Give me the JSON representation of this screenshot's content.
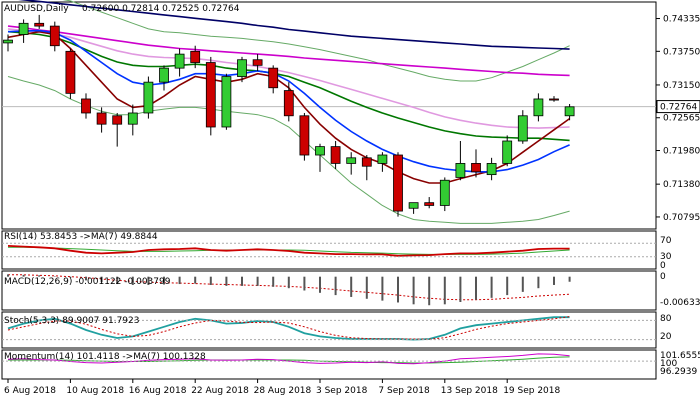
{
  "header": {
    "symbol": "AUDUSD,Daily",
    "ohlc": "0.72600 0.72814 0.72525 0.72764"
  },
  "indicators": {
    "rsi_label": "RSI(14) 53.8453  ->MA(7) 49.8844",
    "rsi_ticks": [
      "70",
      "30",
      "0"
    ],
    "macd_label": "MACD(12,26,9) -0.001122 -0.003799",
    "macd_ticks": [
      "0",
      "-0.006331"
    ],
    "stoch_label": "Stoch(5,3,3) 89.9007 91.7923",
    "stoch_ticks": [
      "80",
      "20"
    ],
    "mom_label": "Momentum(14) 101.4118  ->MA(7) 100.1328",
    "mom_ticks": [
      "101.6555",
      "100",
      "96.2939"
    ]
  },
  "colors": {
    "bull": "#33cc33",
    "bear": "#cc0000",
    "ma_navy": "#000066",
    "ma_magenta": "#cc00cc",
    "ma_green": "#007700",
    "ma_darkred": "#880000",
    "ma_blue": "#0033ff",
    "bb": "#66aa66",
    "bb_mid": "#e099e0",
    "rsi": "#cc0000",
    "rsi_ma": "#33aa33",
    "macd": "#555555",
    "signal": "#cc0000",
    "stoch_k": "#20a0a0",
    "stoch_d": "#cc0000",
    "mom": "#cc00cc",
    "mom_ma": "#33aa33"
  },
  "chart_data": {
    "type": "candlestick",
    "title": "AUDUSD,Daily",
    "price_ticks": [
      0.74335,
      0.7375,
      0.7315,
      0.72565,
      0.7198,
      0.7138,
      0.70795
    ],
    "ylim": [
      0.7058,
      0.7463
    ],
    "current_price": 0.72764,
    "x_labels": [
      "6 Aug 2018",
      "10 Aug 2018",
      "16 Aug 2018",
      "22 Aug 2018",
      "28 Aug 2018",
      "3 Sep 2018",
      "7 Sep 2018",
      "13 Sep 2018",
      "19 Sep 2018"
    ],
    "x_label_bars": [
      0,
      4,
      8,
      12,
      16,
      20,
      24,
      28,
      32
    ],
    "candles": [
      {
        "o": 0.739,
        "h": 0.7405,
        "l": 0.7375,
        "c": 0.7395
      },
      {
        "o": 0.7405,
        "h": 0.7432,
        "l": 0.739,
        "c": 0.7425
      },
      {
        "o": 0.7425,
        "h": 0.744,
        "l": 0.7415,
        "c": 0.742
      },
      {
        "o": 0.742,
        "h": 0.7428,
        "l": 0.7375,
        "c": 0.7385
      },
      {
        "o": 0.7375,
        "h": 0.738,
        "l": 0.729,
        "c": 0.73
      },
      {
        "o": 0.729,
        "h": 0.73,
        "l": 0.7255,
        "c": 0.7265
      },
      {
        "o": 0.7265,
        "h": 0.7275,
        "l": 0.723,
        "c": 0.7245
      },
      {
        "o": 0.726,
        "h": 0.7265,
        "l": 0.7205,
        "c": 0.7245
      },
      {
        "o": 0.7245,
        "h": 0.728,
        "l": 0.7225,
        "c": 0.7265
      },
      {
        "o": 0.7265,
        "h": 0.733,
        "l": 0.7255,
        "c": 0.732
      },
      {
        "o": 0.732,
        "h": 0.735,
        "l": 0.7305,
        "c": 0.7345
      },
      {
        "o": 0.7345,
        "h": 0.738,
        "l": 0.733,
        "c": 0.737
      },
      {
        "o": 0.7375,
        "h": 0.7385,
        "l": 0.7345,
        "c": 0.7355
      },
      {
        "o": 0.7355,
        "h": 0.7365,
        "l": 0.7225,
        "c": 0.724
      },
      {
        "o": 0.724,
        "h": 0.7335,
        "l": 0.7235,
        "c": 0.733
      },
      {
        "o": 0.733,
        "h": 0.7365,
        "l": 0.732,
        "c": 0.736
      },
      {
        "o": 0.736,
        "h": 0.737,
        "l": 0.734,
        "c": 0.735
      },
      {
        "o": 0.7345,
        "h": 0.735,
        "l": 0.73,
        "c": 0.731
      },
      {
        "o": 0.7305,
        "h": 0.732,
        "l": 0.725,
        "c": 0.726
      },
      {
        "o": 0.726,
        "h": 0.7265,
        "l": 0.718,
        "c": 0.719
      },
      {
        "o": 0.719,
        "h": 0.721,
        "l": 0.716,
        "c": 0.7205
      },
      {
        "o": 0.7205,
        "h": 0.7215,
        "l": 0.7165,
        "c": 0.7175
      },
      {
        "o": 0.7175,
        "h": 0.7195,
        "l": 0.7155,
        "c": 0.7185
      },
      {
        "o": 0.7185,
        "h": 0.719,
        "l": 0.7145,
        "c": 0.717
      },
      {
        "o": 0.7175,
        "h": 0.7195,
        "l": 0.716,
        "c": 0.719
      },
      {
        "o": 0.719,
        "h": 0.7195,
        "l": 0.708,
        "c": 0.709
      },
      {
        "o": 0.7095,
        "h": 0.7105,
        "l": 0.7085,
        "c": 0.7105
      },
      {
        "o": 0.7105,
        "h": 0.7115,
        "l": 0.7095,
        "c": 0.71
      },
      {
        "o": 0.71,
        "h": 0.715,
        "l": 0.709,
        "c": 0.7145
      },
      {
        "o": 0.715,
        "h": 0.7215,
        "l": 0.7145,
        "c": 0.7175
      },
      {
        "o": 0.7175,
        "h": 0.72,
        "l": 0.715,
        "c": 0.716
      },
      {
        "o": 0.7155,
        "h": 0.7185,
        "l": 0.7145,
        "c": 0.7175
      },
      {
        "o": 0.7175,
        "h": 0.7225,
        "l": 0.717,
        "c": 0.7215
      },
      {
        "o": 0.7215,
        "h": 0.727,
        "l": 0.721,
        "c": 0.726
      },
      {
        "o": 0.726,
        "h": 0.73,
        "l": 0.725,
        "c": 0.729
      },
      {
        "o": 0.729,
        "h": 0.7295,
        "l": 0.7285,
        "c": 0.7288
      },
      {
        "o": 0.726,
        "h": 0.7281,
        "l": 0.7252,
        "c": 0.7276
      }
    ],
    "moving_averages": [
      {
        "color": "ma_navy",
        "values": [
          0.747,
          0.7467,
          0.7464,
          0.7461,
          0.7458,
          0.7455,
          0.7452,
          0.7449,
          0.7446,
          0.7443,
          0.744,
          0.7437,
          0.7434,
          0.7431,
          0.7428,
          0.7425,
          0.7421,
          0.7418,
          0.7414,
          0.7411,
          0.7408,
          0.7405,
          0.7402,
          0.74,
          0.7398,
          0.7396,
          0.7394,
          0.7392,
          0.739,
          0.7388,
          0.7386,
          0.7384,
          0.7383,
          0.7382,
          0.7381,
          0.738,
          0.7379
        ]
      },
      {
        "color": "ma_magenta",
        "values": [
          0.742,
          0.7417,
          0.7413,
          0.741,
          0.7406,
          0.7402,
          0.7398,
          0.7394,
          0.739,
          0.7386,
          0.7383,
          0.738,
          0.7378,
          0.7376,
          0.7374,
          0.7372,
          0.737,
          0.7368,
          0.7366,
          0.7363,
          0.7361,
          0.7359,
          0.7357,
          0.7355,
          0.7353,
          0.7351,
          0.7349,
          0.7347,
          0.7345,
          0.7343,
          0.7341,
          0.7339,
          0.7337,
          0.7336,
          0.7334,
          0.7333,
          0.7332
        ]
      },
      {
        "color": "bb_mid",
        "values": [
          0.7415,
          0.7412,
          0.7409,
          0.7406,
          0.74,
          0.7392,
          0.7384,
          0.7376,
          0.737,
          0.7366,
          0.7364,
          0.7363,
          0.7362,
          0.7359,
          0.7355,
          0.7352,
          0.7348,
          0.7343,
          0.7337,
          0.733,
          0.7323,
          0.7315,
          0.7307,
          0.7299,
          0.7291,
          0.7283,
          0.7275,
          0.7266,
          0.7258,
          0.7252,
          0.7247,
          0.7243,
          0.724,
          0.7239,
          0.7238,
          0.7239,
          0.724
        ]
      },
      {
        "color": "ma_green",
        "values": [
          0.741,
          0.7408,
          0.7405,
          0.74,
          0.739,
          0.7378,
          0.7366,
          0.7356,
          0.735,
          0.7348,
          0.7348,
          0.735,
          0.7352,
          0.735,
          0.7345,
          0.7342,
          0.734,
          0.7336,
          0.733,
          0.732,
          0.731,
          0.7298,
          0.7286,
          0.7275,
          0.7265,
          0.7256,
          0.7248,
          0.724,
          0.7233,
          0.7228,
          0.7224,
          0.7222,
          0.7221,
          0.722,
          0.722,
          0.7218,
          0.7216
        ]
      },
      {
        "color": "ma_darkred",
        "values": [
          0.74,
          0.7405,
          0.741,
          0.7405,
          0.738,
          0.735,
          0.732,
          0.729,
          0.7275,
          0.7278,
          0.7295,
          0.7315,
          0.733,
          0.7325,
          0.732,
          0.7325,
          0.7335,
          0.733,
          0.731,
          0.7275,
          0.7245,
          0.722,
          0.72,
          0.7185,
          0.7175,
          0.716,
          0.7148,
          0.714,
          0.714,
          0.7148,
          0.7155,
          0.7162,
          0.7175,
          0.7195,
          0.7215,
          0.7235,
          0.7255
        ]
      },
      {
        "color": "ma_blue",
        "values": [
          0.741,
          0.7411,
          0.7412,
          0.7408,
          0.7395,
          0.7375,
          0.7355,
          0.7335,
          0.732,
          0.7315,
          0.7318,
          0.7325,
          0.7335,
          0.7335,
          0.7332,
          0.7335,
          0.734,
          0.7336,
          0.7322,
          0.73,
          0.7275,
          0.7252,
          0.7232,
          0.7215,
          0.72,
          0.7188,
          0.7178,
          0.717,
          0.7165,
          0.7162,
          0.716,
          0.716,
          0.7164,
          0.7172,
          0.7182,
          0.7196,
          0.7208
        ]
      }
    ],
    "bollinger_upper": [
      0.748,
      0.7478,
      0.7475,
      0.747,
      0.7465,
      0.7455,
      0.7445,
      0.7435,
      0.7425,
      0.7415,
      0.741,
      0.7408,
      0.7405,
      0.7402,
      0.74,
      0.7398,
      0.7395,
      0.7392,
      0.7388,
      0.7383,
      0.7378,
      0.7372,
      0.7366,
      0.736,
      0.7352,
      0.7345,
      0.7338,
      0.733,
      0.7325,
      0.7322,
      0.7322,
      0.7328,
      0.7338,
      0.7348,
      0.736,
      0.7372,
      0.7385
    ],
    "bollinger_lower": [
      0.733,
      0.7322,
      0.7315,
      0.7305,
      0.729,
      0.7278,
      0.7268,
      0.7262,
      0.7262,
      0.7268,
      0.7272,
      0.7275,
      0.7275,
      0.7272,
      0.7268,
      0.7265,
      0.7262,
      0.7255,
      0.724,
      0.7215,
      0.719,
      0.7165,
      0.714,
      0.712,
      0.71,
      0.7085,
      0.7075,
      0.7072,
      0.707,
      0.7068,
      0.7068,
      0.7068,
      0.707,
      0.7072,
      0.7075,
      0.7082,
      0.709
    ],
    "rsi": {
      "ylim": [
        0,
        100
      ],
      "levels": [
        70,
        30
      ],
      "rsi": [
        62,
        60,
        58,
        55,
        48,
        42,
        40,
        42,
        44,
        50,
        52,
        53,
        55,
        50,
        48,
        50,
        52,
        50,
        47,
        42,
        40,
        38,
        38,
        37,
        37,
        33,
        34,
        35,
        38,
        40,
        40,
        42,
        45,
        48,
        53,
        54,
        54
      ],
      "ma": [
        58,
        58,
        57,
        56,
        54,
        52,
        50,
        48,
        46,
        46,
        46,
        47,
        48,
        49,
        50,
        50,
        50,
        50,
        50,
        49,
        47,
        45,
        43,
        42,
        41,
        39,
        38,
        37,
        37,
        37,
        37,
        38,
        39,
        41,
        44,
        47,
        50
      ]
    },
    "macd": {
      "ylim": [
        -0.0068,
        0.0008
      ],
      "hist": [
        0.0005,
        0.0004,
        0.0003,
        0.0001,
        -0.0002,
        -0.0008,
        -0.0012,
        -0.0016,
        -0.0018,
        -0.0018,
        -0.0017,
        -0.0016,
        -0.0015,
        -0.0018,
        -0.002,
        -0.002,
        -0.002,
        -0.0022,
        -0.0025,
        -0.003,
        -0.0035,
        -0.004,
        -0.0044,
        -0.0048,
        -0.0052,
        -0.0056,
        -0.006,
        -0.0062,
        -0.006,
        -0.0055,
        -0.005,
        -0.0046,
        -0.004,
        -0.0033,
        -0.0025,
        -0.0018,
        -0.0011
      ],
      "signal": [
        0.0004,
        0.0004,
        0.0003,
        0.0002,
        0.0,
        -0.0002,
        -0.0005,
        -0.0008,
        -0.001,
        -0.0012,
        -0.0013,
        -0.0014,
        -0.0015,
        -0.0016,
        -0.0017,
        -0.0018,
        -0.0019,
        -0.002,
        -0.0021,
        -0.0023,
        -0.0025,
        -0.0028,
        -0.0031,
        -0.0034,
        -0.0037,
        -0.004,
        -0.0044,
        -0.0047,
        -0.0049,
        -0.005,
        -0.005,
        -0.0049,
        -0.0047,
        -0.0045,
        -0.0042,
        -0.004,
        -0.0038
      ]
    },
    "stoch": {
      "ylim": [
        0,
        100
      ],
      "levels": [
        80,
        20
      ],
      "k": [
        55,
        70,
        80,
        85,
        70,
        50,
        35,
        25,
        30,
        45,
        60,
        75,
        85,
        80,
        70,
        72,
        78,
        75,
        60,
        40,
        30,
        25,
        22,
        22,
        22,
        22,
        20,
        22,
        35,
        55,
        65,
        70,
        75,
        80,
        85,
        90,
        90
      ],
      "d": [
        50,
        60,
        70,
        78,
        78,
        68,
        52,
        38,
        30,
        33,
        45,
        60,
        72,
        80,
        78,
        74,
        73,
        75,
        72,
        60,
        45,
        33,
        26,
        23,
        22,
        22,
        22,
        21,
        26,
        38,
        52,
        62,
        70,
        75,
        80,
        85,
        92
      ]
    },
    "momentum": {
      "ylim": [
        95.8,
        102.4
      ],
      "level": 100,
      "mom": [
        100.5,
        100.6,
        100.4,
        100.3,
        99.9,
        99.6,
        99.5,
        99.7,
        99.9,
        100.2,
        100.4,
        100.5,
        100.6,
        100.3,
        100.2,
        100.3,
        100.5,
        100.4,
        100.0,
        99.6,
        99.4,
        99.5,
        99.7,
        99.6,
        99.8,
        99.4,
        99.3,
        99.6,
        100.0,
        100.6,
        100.8,
        101.0,
        101.2,
        101.5,
        101.9,
        101.8,
        101.4
      ],
      "ma": [
        100.3,
        100.3,
        100.3,
        100.3,
        100.2,
        100.1,
        100.0,
        99.9,
        99.9,
        99.9,
        100.0,
        100.1,
        100.2,
        100.3,
        100.3,
        100.3,
        100.3,
        100.3,
        100.3,
        100.2,
        100.0,
        99.9,
        99.8,
        99.7,
        99.6,
        99.6,
        99.5,
        99.5,
        99.6,
        99.7,
        99.9,
        100.1,
        100.3,
        100.5,
        100.8,
        101.0,
        101.1
      ]
    }
  }
}
